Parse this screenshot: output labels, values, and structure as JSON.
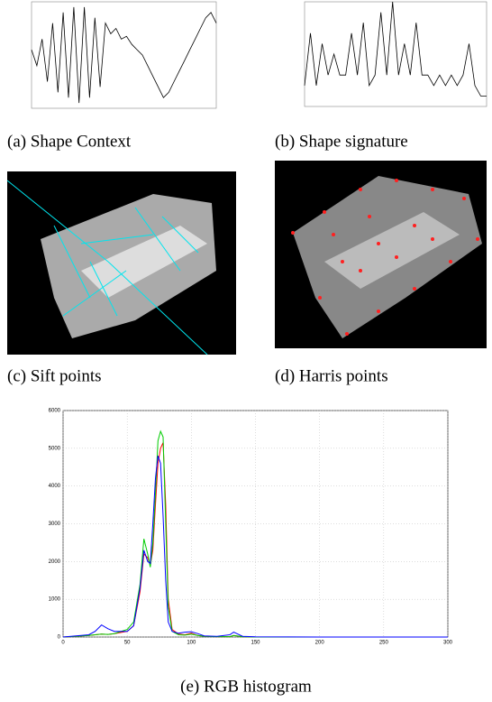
{
  "captions": [
    "(a) Shape Context",
    "(b) Shape signature",
    "(c) Sift points",
    "(d) Harris points",
    "(e) RGB histogram"
  ],
  "plots": [
    {
      "type": "line",
      "color": "#000000",
      "ylim": [
        -1,
        1
      ],
      "values": [
        0.1,
        -0.2,
        0.3,
        -0.5,
        0.6,
        -0.7,
        0.8,
        -0.8,
        0.9,
        -0.9,
        0.9,
        -0.8,
        0.7,
        -0.6,
        0.6,
        0.4,
        0.5,
        0.3,
        0.35,
        0.2,
        0.1,
        0.0,
        -0.2,
        -0.4,
        -0.6,
        -0.8,
        -0.7,
        -0.5,
        -0.3,
        -0.1,
        0.1,
        0.3,
        0.5,
        0.7,
        0.8,
        0.6
      ]
    },
    {
      "type": "line",
      "color": "#000000",
      "ylim": [
        0,
        1
      ],
      "values": [
        0.2,
        0.7,
        0.2,
        0.6,
        0.3,
        0.5,
        0.3,
        0.3,
        0.7,
        0.3,
        0.8,
        0.2,
        0.3,
        0.9,
        0.3,
        1.0,
        0.3,
        0.6,
        0.3,
        0.8,
        0.3,
        0.3,
        0.2,
        0.3,
        0.2,
        0.3,
        0.2,
        0.3,
        0.6,
        0.2,
        0.1,
        0.1
      ]
    }
  ],
  "histogram": {
    "type": "line",
    "x": [
      0,
      10,
      20,
      25,
      30,
      35,
      40,
      50,
      55,
      60,
      63,
      66,
      68,
      70,
      72,
      74,
      76,
      78,
      80,
      82,
      85,
      90,
      95,
      100,
      105,
      110,
      120,
      130,
      133,
      140,
      150,
      200,
      250,
      300
    ],
    "series": [
      {
        "color": "#ff0000",
        "values": [
          0,
          20,
          40,
          60,
          80,
          70,
          90,
          150,
          300,
          1200,
          2200,
          2100,
          1900,
          2300,
          3500,
          4600,
          5000,
          5150,
          3500,
          1000,
          200,
          80,
          60,
          100,
          40,
          20,
          10,
          10,
          40,
          5,
          0,
          0,
          0,
          0
        ]
      },
      {
        "color": "#00cc00",
        "values": [
          0,
          20,
          40,
          60,
          80,
          70,
          90,
          200,
          400,
          1400,
          2600,
          2200,
          1850,
          2500,
          3800,
          5200,
          5450,
          5300,
          3000,
          800,
          150,
          60,
          50,
          80,
          40,
          20,
          10,
          10,
          40,
          5,
          0,
          0,
          0,
          0
        ]
      },
      {
        "color": "#0000ff",
        "values": [
          0,
          30,
          60,
          150,
          320,
          220,
          150,
          150,
          300,
          1300,
          2300,
          2000,
          1950,
          3000,
          4200,
          4800,
          4600,
          3200,
          1500,
          400,
          150,
          100,
          130,
          140,
          90,
          30,
          20,
          60,
          130,
          20,
          5,
          0,
          0,
          0
        ]
      }
    ],
    "xlim": [
      0,
      300
    ],
    "ylim": [
      0,
      6000
    ],
    "xticks": [
      0,
      50,
      100,
      150,
      200,
      250,
      300
    ],
    "yticks": [
      0,
      1000,
      2000,
      3000,
      4000,
      5000,
      6000
    ],
    "grid": true
  }
}
